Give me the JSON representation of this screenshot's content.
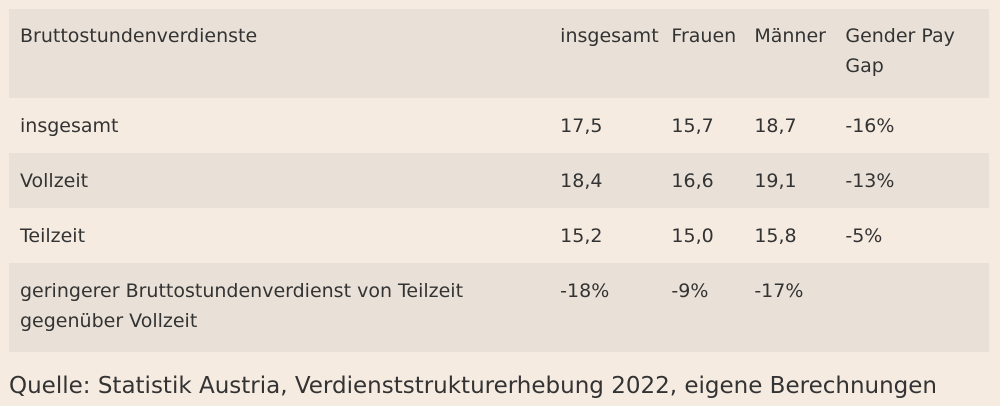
{
  "table": {
    "headers": [
      "Bruttostundenverdienste",
      "insgesamt",
      "Frauen",
      "Männer",
      "Gender Pay Gap"
    ],
    "rows": [
      [
        "insgesamt",
        "17,5",
        "15,7",
        "18,7",
        "-16%"
      ],
      [
        "Vollzeit",
        "18,4",
        "16,6",
        "19,1",
        "-13%"
      ],
      [
        "Teilzeit",
        "15,2",
        "15,0",
        "15,8",
        "-5%"
      ],
      [
        "geringerer Bruttostundenverdienst von Teilzeit gegenüber Vollzeit",
        "-18%",
        "-9%",
        "-17%",
        ""
      ]
    ]
  },
  "source": "Quelle: Statistik Austria, Verdienststrukturerhebung 2022, eigene Berechnungen",
  "colors": {
    "background": "#f5ebe1",
    "band": "#e9e1d7",
    "text": "#333333"
  }
}
